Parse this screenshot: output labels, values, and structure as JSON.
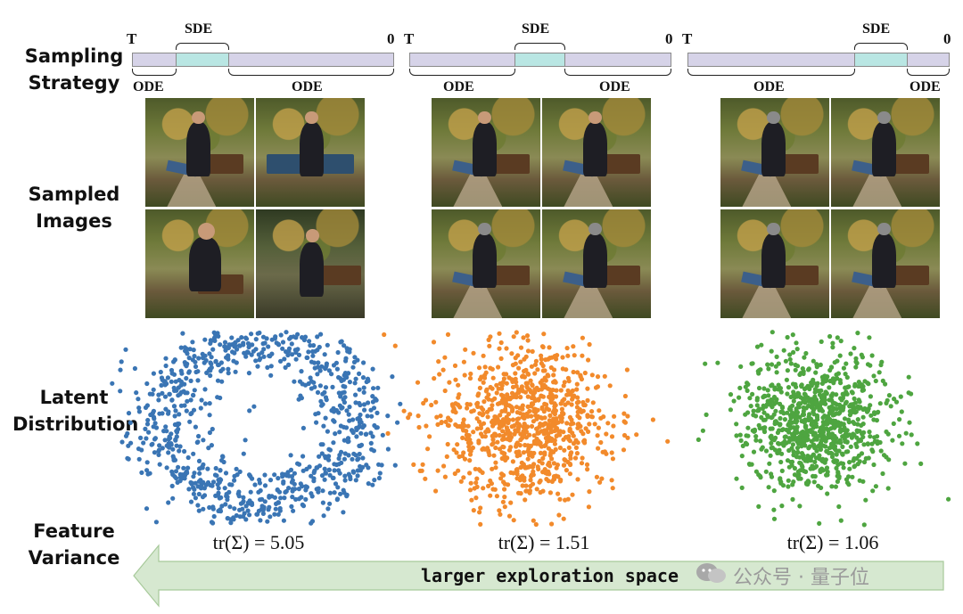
{
  "row_labels": {
    "sampling": "Sampling\nStrategy",
    "images": "Sampled\nImages",
    "latent": "Latent\nDistribution",
    "variance": "Feature\nVariance"
  },
  "timeline": {
    "start": "T",
    "end": "0",
    "sde": "SDE",
    "ode": "ODE"
  },
  "traces": [
    "tr(Σ) = 5.05",
    "tr(Σ) = 1.51",
    "tr(Σ) = 1.06"
  ],
  "arrow_label": "larger exploration space",
  "watermark": "公众号 · 量子位",
  "colors": {
    "blue": "#3a75b4",
    "orange": "#f28a2b",
    "green": "#4ea540",
    "ode_fill": "#d6d3e8",
    "sde_fill": "#b9e6e3",
    "arrow_fill": "#d6e8d0"
  },
  "chart_data": [
    {
      "type": "scatter",
      "series": [
        {
          "name": "",
          "color": "#3a75b4",
          "shape": "ring",
          "spread": 5.05
        }
      ]
    },
    {
      "type": "scatter",
      "series": [
        {
          "name": "",
          "color": "#f28a2b",
          "shape": "gaussian",
          "spread": 1.51
        }
      ]
    },
    {
      "type": "scatter",
      "series": [
        {
          "name": "",
          "color": "#4ea540",
          "shape": "gaussian",
          "spread": 1.06
        }
      ]
    }
  ]
}
